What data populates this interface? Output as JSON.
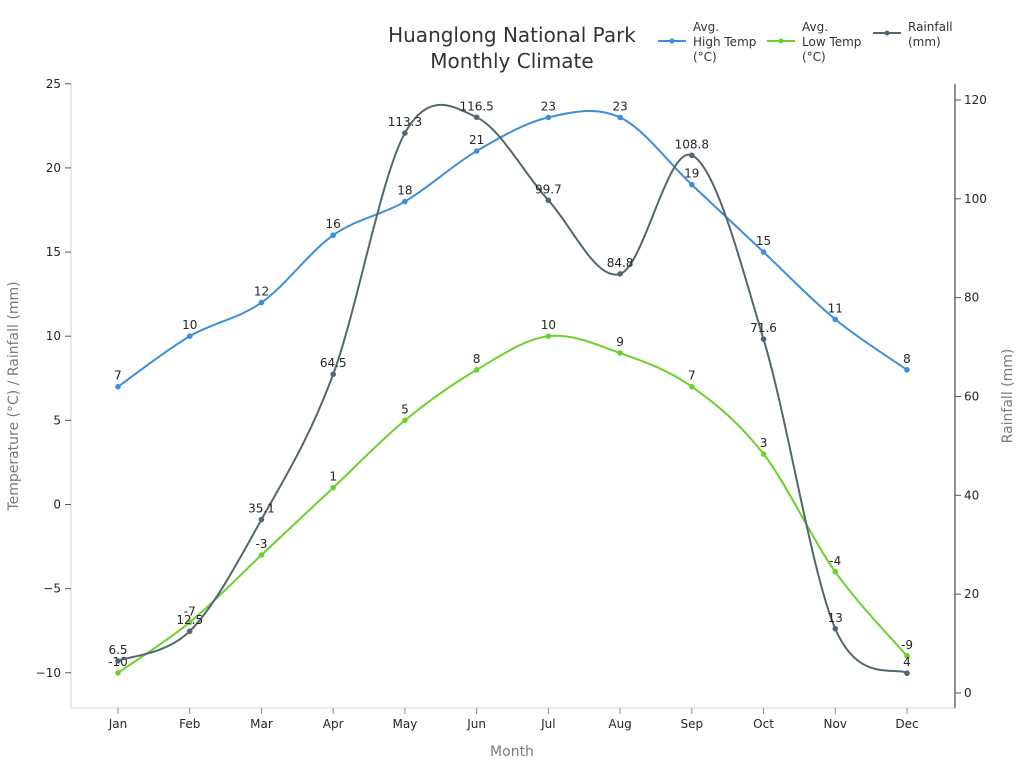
{
  "chart_data": {
    "type": "line",
    "title": "Huanglong National Park Monthly Climate",
    "title_lines": [
      "Huanglong National Park",
      "Monthly Climate"
    ],
    "xlabel": "Month",
    "ylabel": "Temperature (°C) / Rainfall (mm)",
    "y2label": "Rainfall (mm)",
    "categories": [
      "Jan",
      "Feb",
      "Mar",
      "Apr",
      "May",
      "Jun",
      "Jul",
      "Aug",
      "Sep",
      "Oct",
      "Nov",
      "Dec"
    ],
    "ylim": [
      -12,
      25
    ],
    "y2lim": [
      -3,
      123
    ],
    "yticks": [
      25,
      20,
      15,
      10,
      5,
      0,
      -5,
      -10
    ],
    "ytick_labels": [
      "25",
      "20",
      "15",
      "10",
      "5",
      "0",
      "−5",
      "−10"
    ],
    "y2ticks": [
      120,
      100,
      80,
      60,
      40,
      20,
      0
    ],
    "grid": false,
    "legend_position": "top-right",
    "series": [
      {
        "name": "Avg. High Temp (°C)",
        "legend_lines": [
          "Avg.",
          "High Temp",
          "(°C)"
        ],
        "axis": "left",
        "color": "#3b8fdb",
        "values": [
          7,
          10,
          12,
          16,
          18,
          21,
          23,
          23,
          19,
          15,
          11,
          8
        ]
      },
      {
        "name": "Avg. Low Temp (°C)",
        "legend_lines": [
          "Avg.",
          "Low Temp",
          "(°C)"
        ],
        "axis": "left",
        "color": "#6ad22c",
        "values": [
          -10,
          -7,
          -3,
          1,
          5,
          8,
          10,
          9,
          7,
          3,
          -4,
          -9
        ]
      },
      {
        "name": "Rainfall (mm)",
        "legend_lines": [
          "Rainfall",
          "(mm)"
        ],
        "axis": "right",
        "color": "#53676f",
        "values": [
          6.5,
          12.5,
          35.1,
          64.5,
          113.3,
          116.5,
          99.7,
          84.8,
          108.8,
          71.6,
          13,
          4
        ]
      }
    ]
  }
}
